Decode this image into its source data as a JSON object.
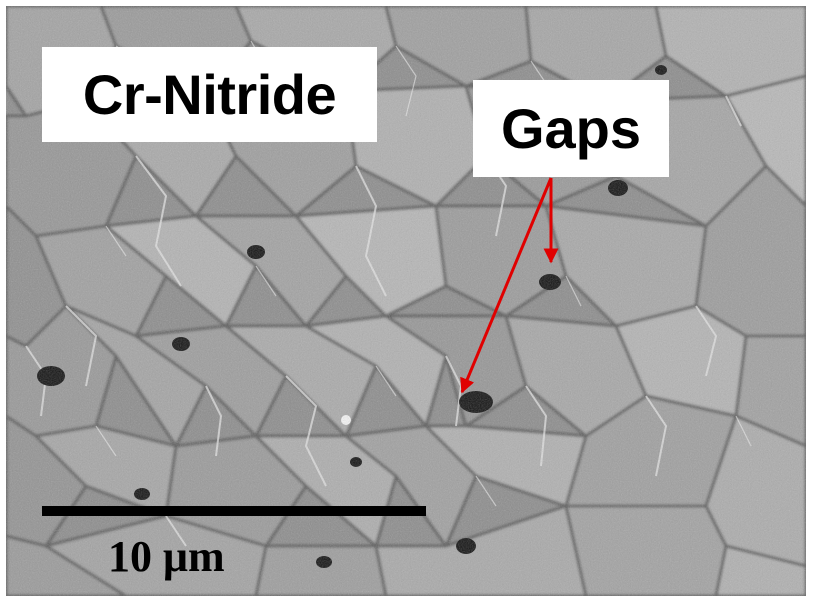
{
  "labels": {
    "sample": "Cr-Nitride",
    "annotation": "Gaps"
  },
  "scale_bar": {
    "text": "10 μm"
  },
  "colors": {
    "arrow": "#e00000",
    "label_background": "#ffffff",
    "label_text": "#000000",
    "scale_bar": "#000000"
  }
}
